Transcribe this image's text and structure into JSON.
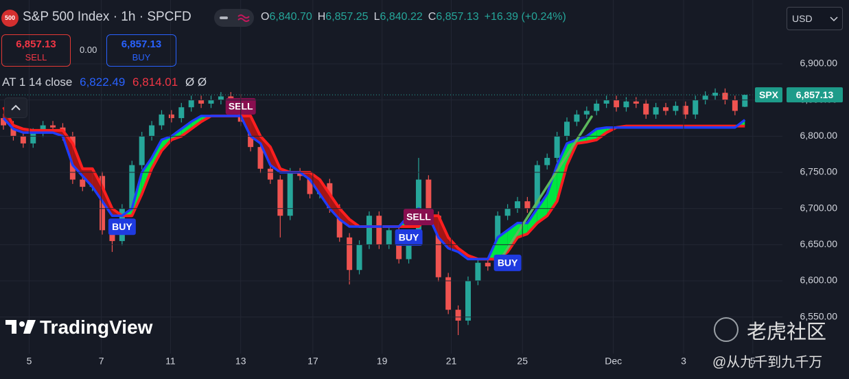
{
  "header": {
    "badge": "500",
    "title": "S&P 500 Index · 1h · SPCFD",
    "ohlc": [
      {
        "key": "O",
        "value": "6,840.70"
      },
      {
        "key": "H",
        "value": "6,857.25"
      },
      {
        "key": "L",
        "value": "6,840.22"
      },
      {
        "key": "C",
        "value": "6,857.13"
      }
    ],
    "change": "+16.39 (+0.24%)",
    "sell_price": "6,857.13",
    "sell_label": "SELL",
    "spread": "0.00",
    "buy_price": "6,857.13",
    "buy_label": "BUY",
    "currency": "USD",
    "indicator_name": "AT 1 14 close",
    "indicator_extra": "Ø Ø"
  },
  "watermark": {
    "brand": "TradingView",
    "site": "老虎社区",
    "author": "@从九千到九千万"
  },
  "chart_data": {
    "type": "candlestick",
    "up_color": "#26a69a",
    "down_color": "#ef5350",
    "open": [
      6825,
      6815,
      6800,
      6790,
      6805,
      6815,
      6812,
      6800,
      6740,
      6730,
      6745,
      6670,
      6655,
      6700,
      6760,
      6800,
      6815,
      6830,
      6825,
      6840,
      6850,
      6845,
      6850,
      6855,
      6852,
      6820,
      6785,
      6755,
      6740,
      6690,
      6750,
      6745,
      6720,
      6735,
      6700,
      6660,
      6615,
      6650,
      6690,
      6650,
      6670,
      6630,
      6660,
      6740,
      6690,
      6605,
      6560,
      6545,
      6600,
      6625,
      6620,
      6690,
      6700,
      6710,
      6700,
      6760,
      6770,
      6800,
      6820,
      6830,
      6835,
      6845,
      6850,
      6840,
      6848,
      6845,
      6830,
      6840,
      6835,
      6842,
      6830,
      6850,
      6856,
      6860,
      6850,
      6840.7
    ],
    "high": [
      6831,
      6821,
      6806,
      6811,
      6821,
      6821,
      6818,
      6806,
      6746,
      6751,
      6751,
      6676,
      6706,
      6766,
      6806,
      6821,
      6836,
      6836,
      6846,
      6856,
      6856,
      6856,
      6861,
      6861,
      6858,
      6826,
      6791,
      6761,
      6746,
      6756,
      6756,
      6751,
      6741,
      6741,
      6706,
      6666,
      6656,
      6696,
      6696,
      6676,
      6676,
      6666,
      6770,
      6746,
      6696,
      6611,
      6566,
      6606,
      6631,
      6631,
      6696,
      6706,
      6716,
      6716,
      6766,
      6776,
      6806,
      6826,
      6836,
      6841,
      6851,
      6856,
      6856,
      6854,
      6854,
      6851,
      6846,
      6846,
      6848,
      6848,
      6856,
      6862,
      6866,
      6866,
      6856,
      6857.25
    ],
    "low": [
      6809,
      6794,
      6784,
      6784,
      6799,
      6806,
      6794,
      6734,
      6724,
      6724,
      6664,
      6640,
      6649,
      6694,
      6754,
      6794,
      6809,
      6819,
      6819,
      6834,
      6839,
      6839,
      6844,
      6846,
      6814,
      6779,
      6749,
      6734,
      6660,
      6684,
      6739,
      6714,
      6714,
      6694,
      6654,
      6595,
      6609,
      6644,
      6644,
      6644,
      6624,
      6624,
      6654,
      6684,
      6599,
      6554,
      6525,
      6539,
      6594,
      6614,
      6614,
      6684,
      6694,
      6694,
      6694,
      6754,
      6764,
      6794,
      6814,
      6824,
      6829,
      6839,
      6834,
      6834,
      6839,
      6824,
      6824,
      6829,
      6829,
      6824,
      6824,
      6844,
      6850,
      6844,
      6829,
      6840.22
    ],
    "close": [
      6815,
      6800,
      6790,
      6805,
      6815,
      6812,
      6800,
      6740,
      6730,
      6745,
      6670,
      6655,
      6700,
      6760,
      6800,
      6815,
      6830,
      6825,
      6840,
      6850,
      6845,
      6850,
      6855,
      6852,
      6820,
      6785,
      6755,
      6740,
      6690,
      6750,
      6745,
      6720,
      6735,
      6700,
      6660,
      6615,
      6650,
      6690,
      6650,
      6670,
      6630,
      6660,
      6740,
      6690,
      6605,
      6560,
      6545,
      6600,
      6625,
      6620,
      6690,
      6700,
      6710,
      6700,
      6760,
      6770,
      6800,
      6820,
      6830,
      6835,
      6845,
      6850,
      6840,
      6848,
      6845,
      6830,
      6840,
      6835,
      6842,
      6830,
      6850,
      6856,
      6860,
      6850,
      6835,
      6857.13
    ],
    "overlays": [
      {
        "color": "#1f3dff",
        "last_label": "6,822.49",
        "values": [
          6825,
          6810,
          6805,
          6805,
          6805,
          6805,
          6800,
          6760,
          6745,
          6730,
          6710,
          6690,
          6690,
          6700,
          6750,
          6770,
          6795,
          6800,
          6810,
          6820,
          6828,
          6828,
          6828,
          6828,
          6828,
          6800,
          6790,
          6760,
          6750,
          6750,
          6750,
          6740,
          6720,
          6700,
          6685,
          6675,
          6675,
          6675,
          6675,
          6675,
          6675,
          6690,
          6700,
          6690,
          6660,
          6645,
          6640,
          6630,
          6630,
          6630,
          6660,
          6670,
          6680,
          6680,
          6700,
          6720,
          6760,
          6790,
          6795,
          6800,
          6810,
          6812,
          6812,
          6812,
          6812,
          6812,
          6812,
          6812,
          6812,
          6812,
          6812,
          6812,
          6812,
          6812,
          6812,
          6822.49
        ]
      },
      {
        "color": "#ff1f1f",
        "last_label": "6,814.01",
        "values": [
          6840,
          6815,
          6810,
          6808,
          6808,
          6808,
          6808,
          6790,
          6755,
          6755,
          6730,
          6700,
          6690,
          6690,
          6720,
          6755,
          6780,
          6795,
          6800,
          6810,
          6820,
          6828,
          6828,
          6828,
          6828,
          6828,
          6800,
          6785,
          6755,
          6750,
          6750,
          6750,
          6740,
          6720,
          6700,
          6685,
          6675,
          6675,
          6675,
          6675,
          6675,
          6675,
          6675,
          6690,
          6690,
          6660,
          6645,
          6635,
          6630,
          6630,
          6630,
          6640,
          6660,
          6665,
          6680,
          6690,
          6710,
          6760,
          6790,
          6792,
          6795,
          6805,
          6812,
          6814,
          6814,
          6814,
          6814,
          6814,
          6814,
          6814,
          6814,
          6814,
          6814,
          6814,
          6814,
          6814.01
        ]
      }
    ],
    "fill_up_color": "#00e640",
    "fill_down_color": "#a31515",
    "signals": [
      {
        "index": 12,
        "label": "BUY"
      },
      {
        "index": 24,
        "label": "SELL"
      },
      {
        "index": 41,
        "label": "BUY"
      },
      {
        "index": 42,
        "label": "SELL"
      },
      {
        "index": 51,
        "label": "BUY"
      }
    ],
    "trend_line": {
      "x": [
        50.4,
        59.5
      ],
      "y": [
        6632,
        6827
      ],
      "color": "#5cb85c"
    },
    "last_price": {
      "value": 6857.13,
      "label": "6,857.13",
      "symbol": "SPX"
    },
    "xlim": [
      -0.35,
      78.8
    ],
    "ylim": [
      6499.4,
      6988.3
    ],
    "xticks": [
      {
        "value": 2.6,
        "label": "5"
      },
      {
        "value": 9.9,
        "label": "7"
      },
      {
        "value": 16.9,
        "label": "11"
      },
      {
        "value": 24.0,
        "label": "13"
      },
      {
        "value": 31.3,
        "label": "17"
      },
      {
        "value": 38.3,
        "label": "19"
      },
      {
        "value": 45.3,
        "label": "21"
      },
      {
        "value": 52.5,
        "label": "25"
      },
      {
        "value": 61.7,
        "label": "Dec"
      },
      {
        "value": 68.8,
        "label": "3"
      },
      {
        "value": 75.8,
        "label": "5"
      }
    ],
    "yticks": [
      {
        "value": 6550,
        "label": "6,550.00"
      },
      {
        "value": 6600,
        "label": "6,600.00"
      },
      {
        "value": 6650,
        "label": "6,650.00"
      },
      {
        "value": 6700,
        "label": "6,700.00"
      },
      {
        "value": 6750,
        "label": "6,750.00"
      },
      {
        "value": 6800,
        "label": "6,800.00"
      },
      {
        "value": 6850,
        "label": "6,850.00"
      },
      {
        "value": 6900,
        "label": "6,900.00"
      }
    ],
    "grid": true
  }
}
